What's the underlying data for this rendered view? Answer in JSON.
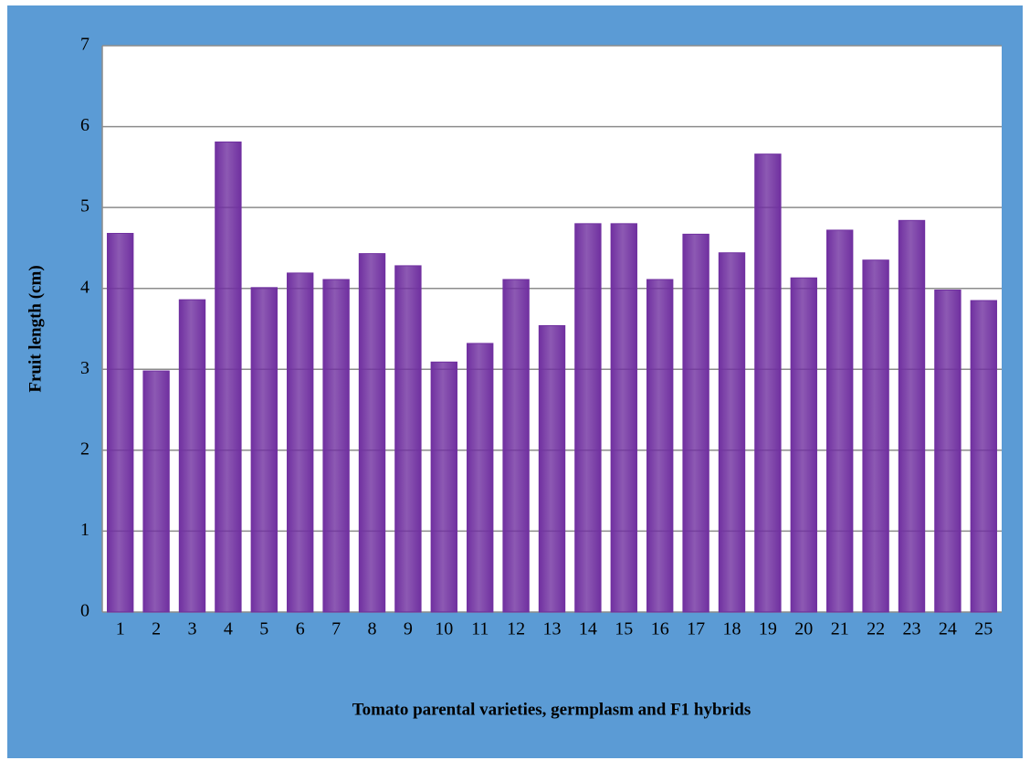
{
  "chart_data": {
    "type": "bar",
    "x_label": "Tomato parental varieties, germplasm and F1 hybrids",
    "y_label": "Fruit length (cm)",
    "categories": [
      "1",
      "2",
      "3",
      "4",
      "5",
      "6",
      "7",
      "8",
      "9",
      "10",
      "11",
      "12",
      "13",
      "14",
      "15",
      "16",
      "17",
      "18",
      "19",
      "20",
      "21",
      "22",
      "23",
      "24",
      "25"
    ],
    "values": [
      4.68,
      2.98,
      3.86,
      5.81,
      4.01,
      4.19,
      4.11,
      4.43,
      4.28,
      3.09,
      3.32,
      4.11,
      3.54,
      4.8,
      4.8,
      4.11,
      4.67,
      4.44,
      5.66,
      4.13,
      4.72,
      4.35,
      4.84,
      3.98,
      3.85
    ],
    "color": "#7030a0",
    "ylim": [
      0,
      7
    ],
    "yticks": [
      0,
      1,
      2,
      3,
      4,
      5,
      6,
      7
    ],
    "grid": true
  }
}
